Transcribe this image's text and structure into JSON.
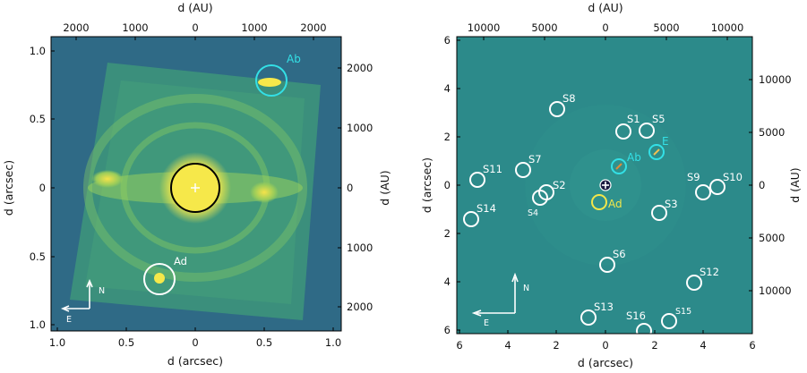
{
  "colors": {
    "background_left": "#2f6a86",
    "background_right": "#2c8a8a",
    "disk": "#3b8f7c",
    "accent_cyan": "#33e0e6",
    "accent_yellow": "#f2e64a",
    "marker_white": "#ffffff"
  },
  "left_panel": {
    "top_axis_label": "d (AU)",
    "top_ticks": [
      "2000",
      "1000",
      "0",
      "1000",
      "2000"
    ],
    "bottom_axis_label": "d (arcsec)",
    "bottom_ticks": [
      "1.0",
      "0.5",
      "0",
      "0.5",
      "1.0"
    ],
    "left_axis_label": "d (arcsec)",
    "left_ticks": [
      "1.0",
      "0.5",
      "0",
      "0.5",
      "1.0"
    ],
    "right_axis_label": "d (AU)",
    "right_ticks": [
      "2000",
      "1000",
      "0",
      "1000",
      "2000"
    ],
    "labels": {
      "ab": "Ab",
      "ad": "Ad"
    },
    "compass": {
      "north": "N",
      "east": "E"
    }
  },
  "right_panel": {
    "top_axis_label": "d (AU)",
    "top_ticks": [
      "10000",
      "5000",
      "0",
      "5000",
      "10000"
    ],
    "bottom_axis_label": "d (arcsec)",
    "bottom_ticks": [
      "6",
      "4",
      "2",
      "0",
      "2",
      "4",
      "6"
    ],
    "left_axis_label": "d (arcsec)",
    "left_ticks": [
      "6",
      "4",
      "2",
      "0",
      "2",
      "4",
      "6"
    ],
    "right_axis_label": "d (AU)",
    "right_ticks": [
      "10000",
      "5000",
      "0",
      "5000",
      "10000"
    ],
    "labels": {
      "ab": "Ab",
      "ad": "Ad",
      "e": "E"
    },
    "sources": [
      "S1",
      "S2",
      "S3",
      "S4",
      "S5",
      "S6",
      "S7",
      "S8",
      "S9",
      "S10",
      "S11",
      "S12",
      "S13",
      "S14",
      "S15",
      "S16"
    ],
    "compass": {
      "north": "N",
      "east": "E"
    }
  }
}
